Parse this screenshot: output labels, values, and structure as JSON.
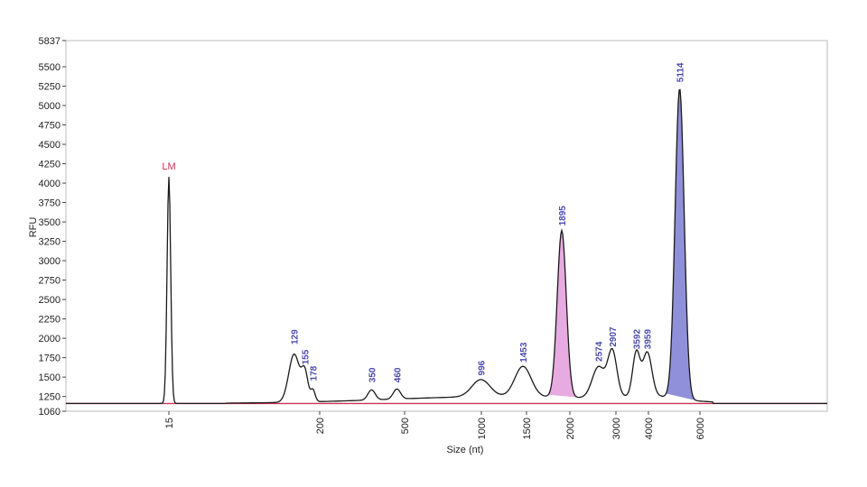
{
  "chart_data": {
    "type": "line",
    "xlabel": "Size (nt)",
    "ylabel": "RFU",
    "x_scale": "log",
    "x_ticks": [
      15,
      200,
      500,
      1000,
      1500,
      2000,
      3000,
      4000,
      6000
    ],
    "y_ticks": [
      1060,
      1250,
      1500,
      1750,
      2000,
      2250,
      2500,
      2750,
      3000,
      3250,
      3500,
      3750,
      4000,
      4250,
      4500,
      4750,
      5000,
      5250,
      5500,
      5837
    ],
    "ylim": [
      1060,
      5837
    ],
    "baseline_rfu": 1160,
    "grid": false,
    "colors": {
      "trace": "#1a1a1a",
      "baseline": "#cc3355",
      "lm_label": "#cc3355",
      "peak_label": "#4a4ab0",
      "fill_1895": "#e7a6df",
      "fill_5114": "#8a8ad8"
    },
    "marker": {
      "label": "LM",
      "size": 15,
      "rfu": 4080
    },
    "peaks": [
      {
        "label": "129",
        "size": 129,
        "rfu": 1780
      },
      {
        "label": "155",
        "size": 155,
        "rfu": 1520
      },
      {
        "label": "178",
        "size": 178,
        "rfu": 1310
      },
      {
        "label": "350",
        "size": 350,
        "rfu": 1290
      },
      {
        "label": "460",
        "size": 460,
        "rfu": 1290
      },
      {
        "label": "996",
        "size": 996,
        "rfu": 1380
      },
      {
        "label": "1453",
        "size": 1453,
        "rfu": 1550
      },
      {
        "label": "1895",
        "size": 1895,
        "rfu": 3310,
        "filled": true
      },
      {
        "label": "2574",
        "size": 2574,
        "rfu": 1560
      },
      {
        "label": "2907",
        "size": 2907,
        "rfu": 1750
      },
      {
        "label": "3592",
        "size": 3592,
        "rfu": 1720
      },
      {
        "label": "3959",
        "size": 3959,
        "rfu": 1720
      },
      {
        "label": "5114",
        "size": 5114,
        "rfu": 5160,
        "filled": true
      }
    ]
  }
}
